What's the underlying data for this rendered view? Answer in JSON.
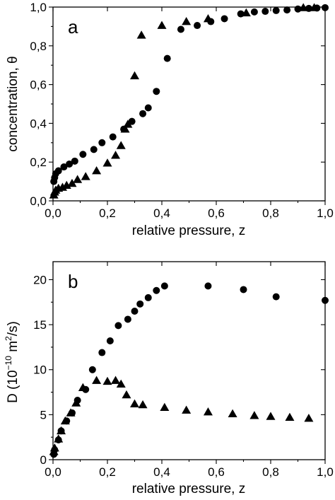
{
  "chart_data": [
    {
      "type": "scatter",
      "panel_label": "a",
      "xlabel": "relative pressure, z",
      "ylabel": "concentration, θ",
      "xlim": [
        0.0,
        1.0
      ],
      "ylim": [
        0.0,
        1.0
      ],
      "x_ticks": [
        {
          "value": 0.0,
          "label": "0,0"
        },
        {
          "value": 0.2,
          "label": "0,2"
        },
        {
          "value": 0.4,
          "label": "0,4"
        },
        {
          "value": 0.6,
          "label": "0,6"
        },
        {
          "value": 0.8,
          "label": "0,8"
        },
        {
          "value": 1.0,
          "label": "1,0"
        }
      ],
      "y_ticks": [
        {
          "value": 0.0,
          "label": "0,0"
        },
        {
          "value": 0.2,
          "label": "0,2"
        },
        {
          "value": 0.4,
          "label": "0,4"
        },
        {
          "value": 0.6,
          "label": "0,6"
        },
        {
          "value": 0.8,
          "label": "0,8"
        },
        {
          "value": 1.0,
          "label": "1,0"
        }
      ],
      "grid": false,
      "series": [
        {
          "marker": "circle",
          "points": [
            [
              0.003,
              0.1
            ],
            [
              0.006,
              0.12
            ],
            [
              0.01,
              0.14
            ],
            [
              0.02,
              0.155
            ],
            [
              0.04,
              0.175
            ],
            [
              0.06,
              0.19
            ],
            [
              0.08,
              0.205
            ],
            [
              0.11,
              0.24
            ],
            [
              0.15,
              0.265
            ],
            [
              0.18,
              0.3
            ],
            [
              0.22,
              0.33
            ],
            [
              0.26,
              0.37
            ],
            [
              0.29,
              0.41
            ],
            [
              0.33,
              0.45
            ],
            [
              0.35,
              0.48
            ],
            [
              0.38,
              0.565
            ],
            [
              0.42,
              0.735
            ],
            [
              0.47,
              0.885
            ],
            [
              0.53,
              0.905
            ],
            [
              0.58,
              0.925
            ],
            [
              0.63,
              0.94
            ],
            [
              0.69,
              0.965
            ],
            [
              0.74,
              0.975
            ],
            [
              0.78,
              0.978
            ],
            [
              0.82,
              0.982
            ],
            [
              0.86,
              0.985
            ],
            [
              0.9,
              0.99
            ],
            [
              0.94,
              0.993
            ],
            [
              0.97,
              0.995
            ],
            [
              1.0,
              0.997
            ]
          ]
        },
        {
          "marker": "triangle",
          "points": [
            [
              0.003,
              0.03
            ],
            [
              0.006,
              0.045
            ],
            [
              0.01,
              0.055
            ],
            [
              0.02,
              0.065
            ],
            [
              0.035,
              0.07
            ],
            [
              0.05,
              0.08
            ],
            [
              0.07,
              0.09
            ],
            [
              0.09,
              0.11
            ],
            [
              0.12,
              0.125
            ],
            [
              0.16,
              0.155
            ],
            [
              0.2,
              0.195
            ],
            [
              0.23,
              0.235
            ],
            [
              0.25,
              0.285
            ],
            [
              0.265,
              0.37
            ],
            [
              0.275,
              0.395
            ],
            [
              0.3,
              0.645
            ],
            [
              0.325,
              0.855
            ],
            [
              0.4,
              0.905
            ],
            [
              0.49,
              0.925
            ],
            [
              0.57,
              0.94
            ],
            [
              0.71,
              0.97
            ],
            [
              0.92,
              0.997
            ],
            [
              0.96,
              0.997
            ]
          ]
        }
      ]
    },
    {
      "type": "scatter",
      "panel_label": "b",
      "xlabel": "relative pressure, z",
      "ylabel_main": "D (10",
      "ylabel_exp1": "−10",
      "ylabel_mid": " m",
      "ylabel_exp2": "2",
      "ylabel_end": "/s)",
      "xlim": [
        0.0,
        1.0
      ],
      "ylim": [
        0.0,
        22.0
      ],
      "x_ticks": [
        {
          "value": 0.0,
          "label": "0,0"
        },
        {
          "value": 0.2,
          "label": "0,2"
        },
        {
          "value": 0.4,
          "label": "0,4"
        },
        {
          "value": 0.6,
          "label": "0,6"
        },
        {
          "value": 0.8,
          "label": "0,8"
        },
        {
          "value": 1.0,
          "label": "1,0"
        }
      ],
      "y_ticks": [
        {
          "value": 0,
          "label": "0"
        },
        {
          "value": 5,
          "label": "5"
        },
        {
          "value": 10,
          "label": "10"
        },
        {
          "value": 15,
          "label": "15"
        },
        {
          "value": 20,
          "label": "20"
        }
      ],
      "grid": false,
      "series": [
        {
          "marker": "circle",
          "points": [
            [
              0.003,
              0.6
            ],
            [
              0.006,
              1.1
            ],
            [
              0.02,
              2.2
            ],
            [
              0.03,
              3.2
            ],
            [
              0.05,
              4.3
            ],
            [
              0.07,
              5.2
            ],
            [
              0.09,
              6.6
            ],
            [
              0.12,
              7.8
            ],
            [
              0.145,
              10.0
            ],
            [
              0.18,
              11.9
            ],
            [
              0.21,
              13.2
            ],
            [
              0.24,
              14.9
            ],
            [
              0.275,
              15.6
            ],
            [
              0.3,
              16.5
            ],
            [
              0.32,
              17.3
            ],
            [
              0.35,
              18.0
            ],
            [
              0.38,
              18.8
            ],
            [
              0.41,
              19.3
            ],
            [
              0.57,
              19.3
            ],
            [
              0.7,
              18.9
            ],
            [
              0.82,
              18.1
            ],
            [
              1.0,
              17.7
            ]
          ]
        },
        {
          "marker": "triangle",
          "points": [
            [
              0.003,
              0.9
            ],
            [
              0.006,
              1.3
            ],
            [
              0.02,
              2.3
            ],
            [
              0.03,
              3.2
            ],
            [
              0.045,
              4.3
            ],
            [
              0.065,
              5.2
            ],
            [
              0.085,
              6.3
            ],
            [
              0.11,
              8.0
            ],
            [
              0.16,
              8.8
            ],
            [
              0.2,
              8.7
            ],
            [
              0.23,
              8.8
            ],
            [
              0.25,
              8.4
            ],
            [
              0.27,
              7.2
            ],
            [
              0.3,
              6.2
            ],
            [
              0.33,
              6.1
            ],
            [
              0.41,
              5.8
            ],
            [
              0.49,
              5.5
            ],
            [
              0.57,
              5.3
            ],
            [
              0.66,
              5.1
            ],
            [
              0.74,
              4.9
            ],
            [
              0.8,
              4.8
            ],
            [
              0.87,
              4.7
            ],
            [
              0.94,
              4.6
            ]
          ]
        }
      ]
    }
  ]
}
